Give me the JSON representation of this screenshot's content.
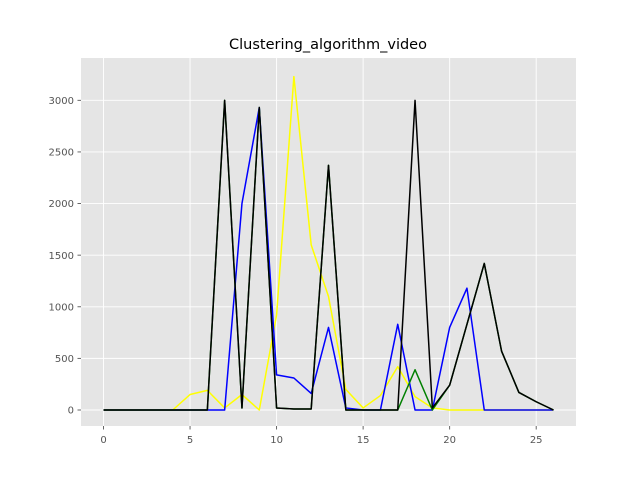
{
  "chart_data": {
    "type": "line",
    "title": "Clustering_algorithm_video",
    "xlabel": "",
    "ylabel": "",
    "xlim": [
      -1.3,
      27.3
    ],
    "ylim": [
      -155,
      3410
    ],
    "xticks": [
      0,
      5,
      10,
      15,
      20,
      25
    ],
    "yticks": [
      0,
      500,
      1000,
      1500,
      2000,
      2500,
      3000
    ],
    "grid": true,
    "legend": "none",
    "style": "ggplot",
    "x": [
      0,
      1,
      2,
      3,
      4,
      5,
      6,
      7,
      8,
      9,
      10,
      11,
      12,
      13,
      14,
      15,
      16,
      17,
      18,
      19,
      20,
      21,
      22,
      23,
      24,
      25,
      26
    ],
    "series": [
      {
        "color": "#ffff00",
        "values": [
          0,
          0,
          0,
          0,
          0,
          150,
          190,
          20,
          150,
          0,
          920,
          3230,
          1600,
          1100,
          200,
          20,
          140,
          420,
          130,
          20,
          0,
          0,
          0,
          0,
          0,
          0,
          0
        ]
      },
      {
        "color": "#0000ff",
        "values": [
          0,
          0,
          0,
          0,
          0,
          0,
          0,
          0,
          2000,
          2930,
          340,
          310,
          160,
          800,
          20,
          0,
          0,
          830,
          0,
          0,
          800,
          1180,
          0,
          0,
          0,
          0,
          0
        ]
      },
      {
        "color": "#008000",
        "values": [
          0,
          0,
          0,
          0,
          0,
          0,
          0,
          3000,
          20,
          2930,
          20,
          10,
          10,
          2370,
          0,
          0,
          0,
          0,
          390,
          0,
          240,
          830,
          1420,
          570,
          170,
          80,
          0
        ]
      },
      {
        "color": "#000000",
        "values": [
          0,
          0,
          0,
          0,
          0,
          0,
          0,
          3000,
          20,
          2930,
          20,
          10,
          10,
          2370,
          0,
          0,
          0,
          0,
          3000,
          20,
          240,
          830,
          1420,
          570,
          170,
          80,
          0
        ]
      }
    ],
    "colors": {
      "plot_bg": "#e5e5e5",
      "grid": "#ffffff",
      "tick": "#555555"
    }
  }
}
